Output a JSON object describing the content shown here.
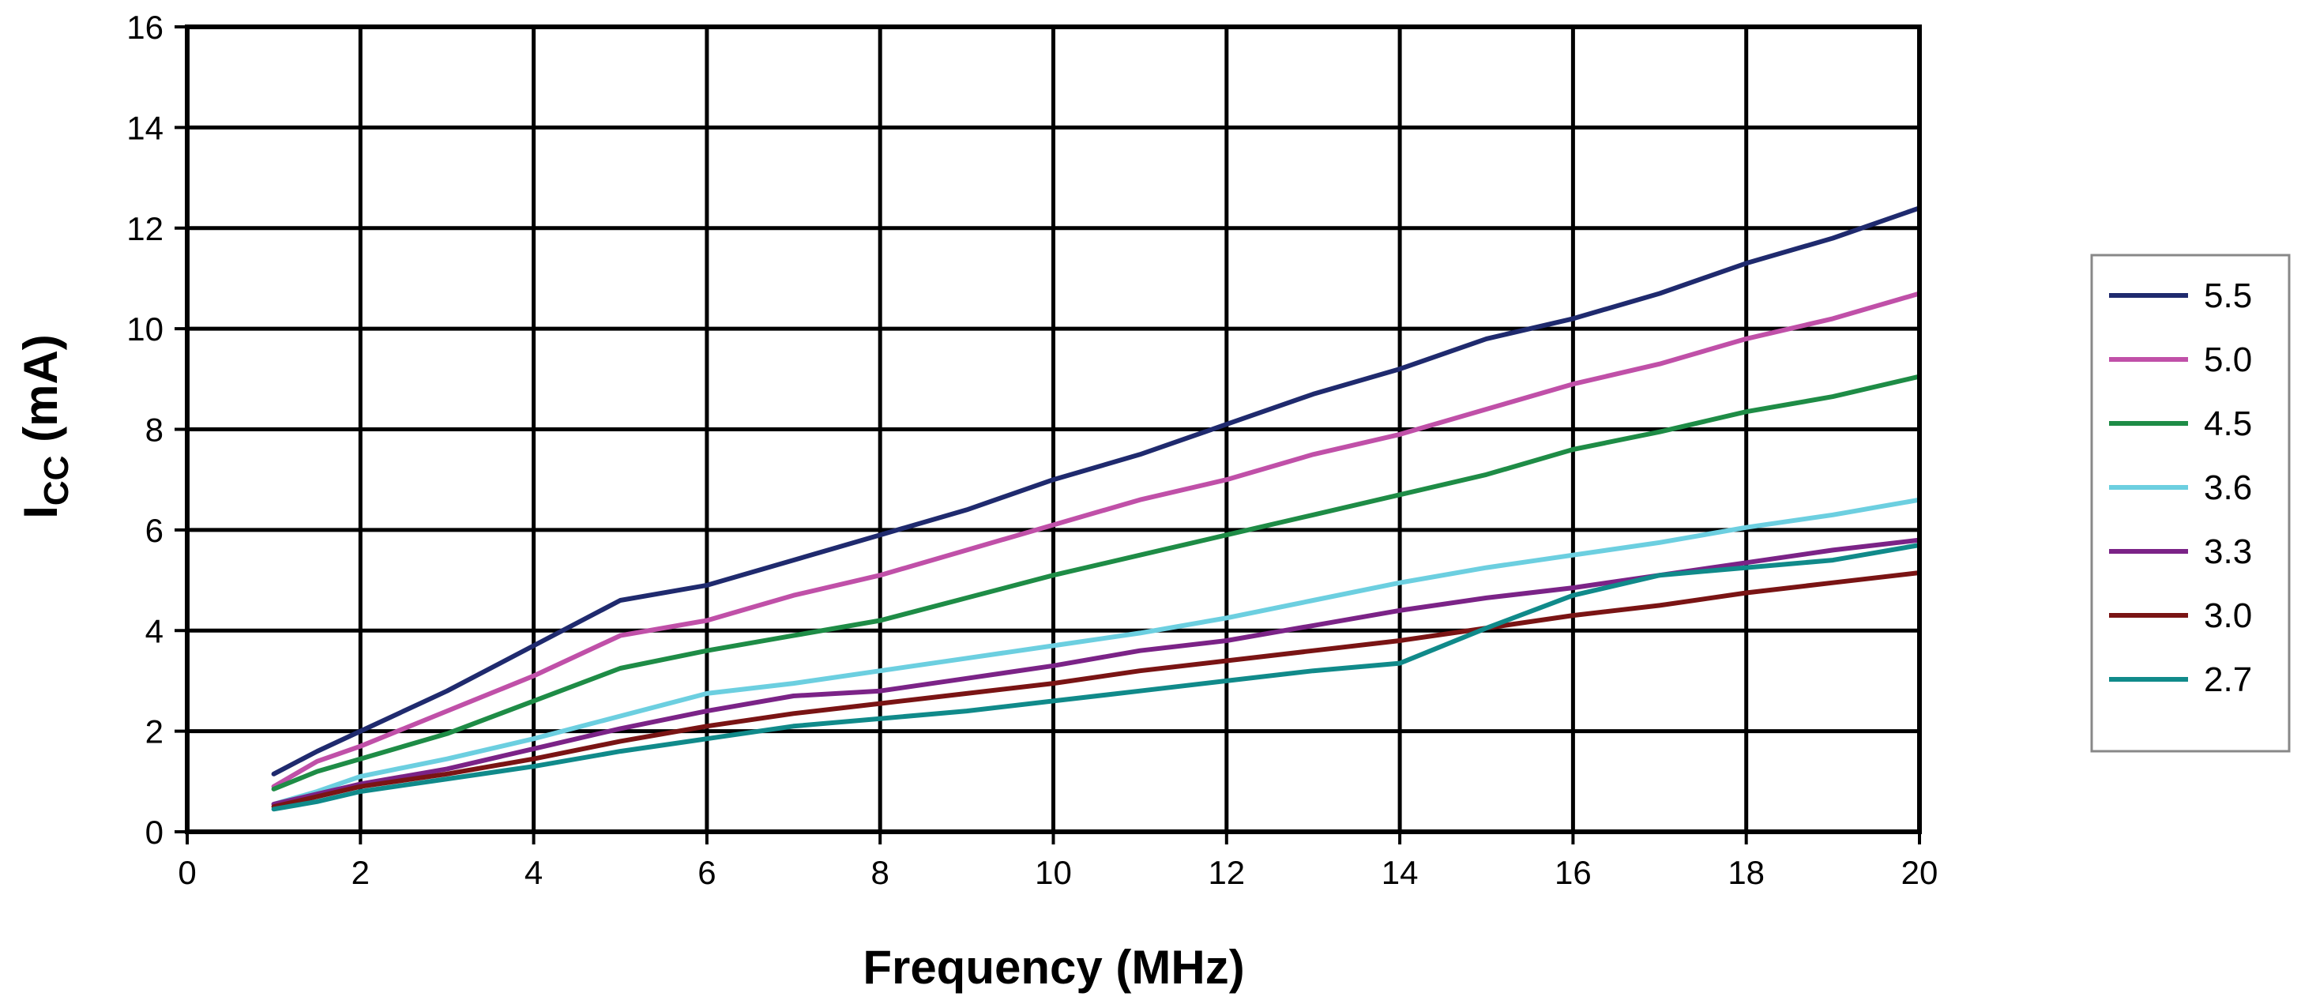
{
  "chart_data": {
    "type": "line",
    "title": "",
    "xlabel": "Frequency (MHz)",
    "ylabel_main": "I",
    "ylabel_sub": "CC",
    "ylabel_tail": " (mA)",
    "xlim": [
      0,
      20
    ],
    "ylim": [
      0,
      16
    ],
    "xticks": [
      0,
      2,
      4,
      6,
      8,
      10,
      12,
      14,
      16,
      18,
      20
    ],
    "yticks": [
      0,
      2,
      4,
      6,
      8,
      10,
      12,
      14,
      16
    ],
    "grid": true,
    "legend_position": "right",
    "series": [
      {
        "name": "5.5",
        "color": "#1f2a6e",
        "x": [
          1,
          1.5,
          2,
          3,
          4,
          5,
          6,
          7,
          8,
          9,
          10,
          11,
          12,
          13,
          14,
          15,
          16,
          17,
          18,
          19,
          20
        ],
        "y": [
          1.15,
          1.6,
          2.0,
          2.8,
          3.7,
          4.6,
          4.9,
          5.4,
          5.9,
          6.4,
          7.0,
          7.5,
          8.1,
          8.7,
          9.2,
          9.8,
          10.2,
          10.7,
          11.3,
          11.8,
          12.4
        ]
      },
      {
        "name": "5.0",
        "color": "#c050a8",
        "x": [
          1,
          1.5,
          2,
          3,
          4,
          5,
          6,
          7,
          8,
          9,
          10,
          11,
          12,
          13,
          14,
          15,
          16,
          17,
          18,
          19,
          20
        ],
        "y": [
          0.9,
          1.4,
          1.7,
          2.4,
          3.1,
          3.9,
          4.2,
          4.7,
          5.1,
          5.6,
          6.1,
          6.6,
          7.0,
          7.5,
          7.9,
          8.4,
          8.9,
          9.3,
          9.8,
          10.2,
          10.7
        ]
      },
      {
        "name": "4.5",
        "color": "#1e8c46",
        "x": [
          1,
          1.5,
          2,
          3,
          4,
          5,
          6,
          7,
          8,
          9,
          10,
          11,
          12,
          13,
          14,
          15,
          16,
          17,
          18,
          19,
          20
        ],
        "y": [
          0.85,
          1.2,
          1.45,
          1.95,
          2.6,
          3.25,
          3.6,
          3.9,
          4.2,
          4.65,
          5.1,
          5.5,
          5.9,
          6.3,
          6.7,
          7.1,
          7.6,
          7.95,
          8.35,
          8.65,
          9.05
        ]
      },
      {
        "name": "3.6",
        "color": "#6ccfe0",
        "x": [
          1,
          1.5,
          2,
          3,
          4,
          5,
          6,
          7,
          8,
          9,
          10,
          11,
          12,
          13,
          14,
          15,
          16,
          17,
          18,
          19,
          20
        ],
        "y": [
          0.55,
          0.8,
          1.1,
          1.45,
          1.85,
          2.3,
          2.75,
          2.95,
          3.2,
          3.45,
          3.7,
          3.95,
          4.25,
          4.6,
          4.95,
          5.25,
          5.5,
          5.75,
          6.05,
          6.3,
          6.6
        ]
      },
      {
        "name": "3.3",
        "color": "#7b2387",
        "x": [
          1,
          1.5,
          2,
          3,
          4,
          5,
          6,
          7,
          8,
          9,
          10,
          11,
          12,
          13,
          14,
          15,
          16,
          17,
          18,
          19,
          20
        ],
        "y": [
          0.55,
          0.75,
          0.95,
          1.25,
          1.65,
          2.05,
          2.4,
          2.7,
          2.8,
          3.05,
          3.3,
          3.6,
          3.8,
          4.1,
          4.4,
          4.65,
          4.85,
          5.1,
          5.35,
          5.6,
          5.8
        ]
      },
      {
        "name": "3.0",
        "color": "#7a1414",
        "x": [
          1,
          1.5,
          2,
          3,
          4,
          5,
          6,
          7,
          8,
          9,
          10,
          11,
          12,
          13,
          14,
          15,
          16,
          17,
          18,
          19,
          20
        ],
        "y": [
          0.5,
          0.7,
          0.9,
          1.15,
          1.45,
          1.8,
          2.1,
          2.35,
          2.55,
          2.75,
          2.95,
          3.2,
          3.4,
          3.6,
          3.8,
          4.05,
          4.3,
          4.5,
          4.75,
          4.95,
          5.15
        ]
      },
      {
        "name": "2.7",
        "color": "#108a8a",
        "x": [
          1,
          1.5,
          2,
          3,
          4,
          5,
          6,
          7,
          8,
          9,
          10,
          11,
          12,
          13,
          14,
          15,
          16,
          17,
          18,
          19,
          20
        ],
        "y": [
          0.45,
          0.6,
          0.8,
          1.05,
          1.3,
          1.6,
          1.85,
          2.1,
          2.25,
          2.4,
          2.6,
          2.8,
          3.0,
          3.2,
          3.35,
          4.05,
          4.7,
          5.1,
          5.25,
          5.4,
          5.7
        ]
      }
    ]
  }
}
